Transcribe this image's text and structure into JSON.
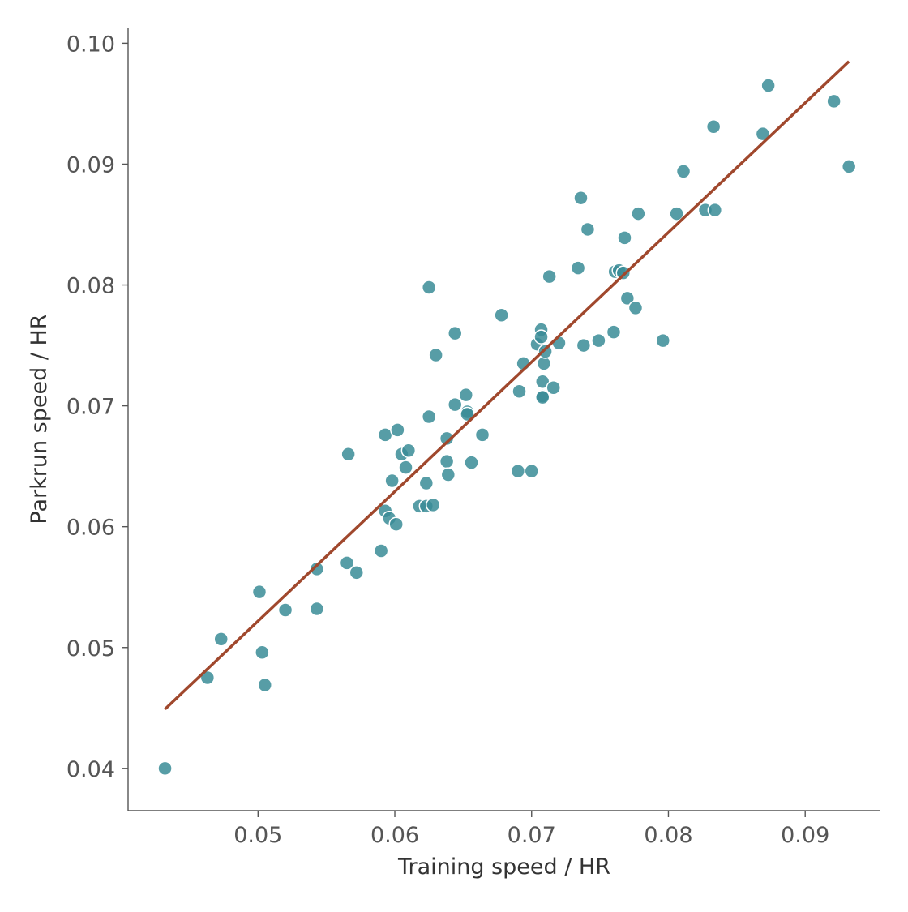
{
  "chart_data": {
    "type": "scatter",
    "title": "",
    "xlabel": "Training speed / HR",
    "ylabel": "Parkrun speed / HR",
    "xlim": [
      0.0405,
      0.0955
    ],
    "ylim": [
      0.0365,
      0.1013
    ],
    "xticks": [
      0.05,
      0.06,
      0.07,
      0.08,
      0.09
    ],
    "xtick_labels": [
      "0.05",
      "0.06",
      "0.07",
      "0.08",
      "0.09"
    ],
    "yticks": [
      0.04,
      0.05,
      0.06,
      0.07,
      0.08,
      0.09,
      0.1
    ],
    "ytick_labels": [
      "0.04",
      "0.05",
      "0.06",
      "0.07",
      "0.08",
      "0.09",
      "0.10"
    ],
    "grid": false,
    "point_color": "#3a8c96",
    "line_color": "#a0482d",
    "series": [
      {
        "type": "scatter",
        "points": [
          [
            0.0432,
            0.04
          ],
          [
            0.0463,
            0.0475
          ],
          [
            0.0473,
            0.0507
          ],
          [
            0.0501,
            0.0546
          ],
          [
            0.0503,
            0.0496
          ],
          [
            0.0505,
            0.0469
          ],
          [
            0.052,
            0.0531
          ],
          [
            0.0543,
            0.0565
          ],
          [
            0.0543,
            0.0532
          ],
          [
            0.0565,
            0.057
          ],
          [
            0.0566,
            0.066
          ],
          [
            0.0572,
            0.0562
          ],
          [
            0.059,
            0.058
          ],
          [
            0.0593,
            0.0613
          ],
          [
            0.0593,
            0.0676
          ],
          [
            0.0596,
            0.0607
          ],
          [
            0.0598,
            0.0638
          ],
          [
            0.0601,
            0.0602
          ],
          [
            0.0602,
            0.068
          ],
          [
            0.0605,
            0.066
          ],
          [
            0.0608,
            0.0649
          ],
          [
            0.061,
            0.0663
          ],
          [
            0.0618,
            0.0617
          ],
          [
            0.0623,
            0.0636
          ],
          [
            0.0623,
            0.0617
          ],
          [
            0.0625,
            0.0691
          ],
          [
            0.0625,
            0.0798
          ],
          [
            0.0628,
            0.0618
          ],
          [
            0.063,
            0.0742
          ],
          [
            0.0638,
            0.0673
          ],
          [
            0.0638,
            0.0654
          ],
          [
            0.0639,
            0.0643
          ],
          [
            0.0644,
            0.0701
          ],
          [
            0.0644,
            0.076
          ],
          [
            0.0652,
            0.0709
          ],
          [
            0.0653,
            0.0695
          ],
          [
            0.0653,
            0.0693
          ],
          [
            0.0656,
            0.0653
          ],
          [
            0.0664,
            0.0676
          ],
          [
            0.0678,
            0.0775
          ],
          [
            0.069,
            0.0646
          ],
          [
            0.0691,
            0.0712
          ],
          [
            0.0694,
            0.0735
          ],
          [
            0.07,
            0.0646
          ],
          [
            0.0704,
            0.0751
          ],
          [
            0.0707,
            0.0763
          ],
          [
            0.0707,
            0.0757
          ],
          [
            0.0708,
            0.0708
          ],
          [
            0.0708,
            0.072
          ],
          [
            0.0708,
            0.0707
          ],
          [
            0.0709,
            0.0735
          ],
          [
            0.071,
            0.0745
          ],
          [
            0.0713,
            0.0807
          ],
          [
            0.0716,
            0.0715
          ],
          [
            0.072,
            0.0752
          ],
          [
            0.0734,
            0.0814
          ],
          [
            0.0736,
            0.0872
          ],
          [
            0.0738,
            0.075
          ],
          [
            0.0741,
            0.0846
          ],
          [
            0.0749,
            0.0754
          ],
          [
            0.076,
            0.0761
          ],
          [
            0.0761,
            0.0811
          ],
          [
            0.0764,
            0.0812
          ],
          [
            0.0767,
            0.081
          ],
          [
            0.0768,
            0.0839
          ],
          [
            0.077,
            0.0789
          ],
          [
            0.0776,
            0.0781
          ],
          [
            0.0778,
            0.0859
          ],
          [
            0.0796,
            0.0754
          ],
          [
            0.0806,
            0.0859
          ],
          [
            0.0811,
            0.0894
          ],
          [
            0.0827,
            0.0862
          ],
          [
            0.0833,
            0.0931
          ],
          [
            0.0834,
            0.0862
          ],
          [
            0.0869,
            0.0925
          ],
          [
            0.0873,
            0.0965
          ],
          [
            0.0921,
            0.0952
          ],
          [
            0.0932,
            0.0898
          ]
        ]
      },
      {
        "type": "line",
        "points": [
          [
            0.0432,
            0.0449
          ],
          [
            0.0932,
            0.0985
          ]
        ]
      }
    ]
  }
}
